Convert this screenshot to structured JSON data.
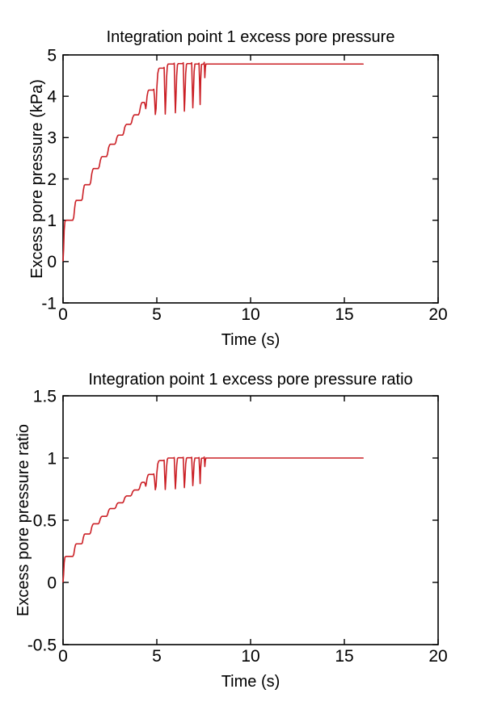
{
  "page": {
    "background": "#ffffff"
  },
  "chart_data": [
    {
      "type": "line",
      "title": "Integration point 1 excess pore pressure",
      "xlabel": "Time (s)",
      "ylabel": "Excess pore pressure (kPa)",
      "xlim": [
        0,
        20
      ],
      "ylim": [
        -1,
        5
      ],
      "xticks": [
        0,
        5,
        10,
        15,
        20
      ],
      "xtick_labels": [
        "0",
        "5",
        "10",
        "15",
        "20"
      ],
      "yticks": [
        -1,
        0,
        1,
        2,
        3,
        4,
        5
      ],
      "ytick_labels": [
        "-1",
        "0",
        "1",
        "2",
        "3",
        "4",
        "5"
      ],
      "grid": false,
      "box": true,
      "legend": null,
      "axis_color": "#000000",
      "line_color": "#cb2026",
      "series": [
        {
          "name": "excess-pore-pressure",
          "points": [
            [
              0,
              0.02
            ],
            [
              0.03,
              0.3
            ],
            [
              0.06,
              0.75
            ],
            [
              0.1,
              0.97
            ],
            [
              0.16,
              1.0
            ],
            [
              0.52,
              1.0
            ],
            [
              0.57,
              1.07
            ],
            [
              0.62,
              1.3
            ],
            [
              0.66,
              1.44
            ],
            [
              0.7,
              1.48
            ],
            [
              0.98,
              1.48
            ],
            [
              1.03,
              1.52
            ],
            [
              1.08,
              1.72
            ],
            [
              1.13,
              1.84
            ],
            [
              1.17,
              1.86
            ],
            [
              1.42,
              1.86
            ],
            [
              1.47,
              1.91
            ],
            [
              1.53,
              2.12
            ],
            [
              1.58,
              2.22
            ],
            [
              1.62,
              2.25
            ],
            [
              1.88,
              2.25
            ],
            [
              1.93,
              2.3
            ],
            [
              1.99,
              2.45
            ],
            [
              2.04,
              2.52
            ],
            [
              2.08,
              2.54
            ],
            [
              2.32,
              2.54
            ],
            [
              2.37,
              2.6
            ],
            [
              2.43,
              2.76
            ],
            [
              2.48,
              2.82
            ],
            [
              2.52,
              2.84
            ],
            [
              2.76,
              2.84
            ],
            [
              2.81,
              2.88
            ],
            [
              2.87,
              3.0
            ],
            [
              2.92,
              3.05
            ],
            [
              2.96,
              3.06
            ],
            [
              3.18,
              3.06
            ],
            [
              3.23,
              3.11
            ],
            [
              3.29,
              3.25
            ],
            [
              3.34,
              3.3
            ],
            [
              3.38,
              3.32
            ],
            [
              3.6,
              3.32
            ],
            [
              3.65,
              3.36
            ],
            [
              3.71,
              3.48
            ],
            [
              3.76,
              3.53
            ],
            [
              3.8,
              3.55
            ],
            [
              4.02,
              3.55
            ],
            [
              4.07,
              3.6
            ],
            [
              4.13,
              3.75
            ],
            [
              4.18,
              3.83
            ],
            [
              4.22,
              3.85
            ],
            [
              4.34,
              3.85
            ],
            [
              4.38,
              3.78
            ],
            [
              4.41,
              3.7
            ],
            [
              4.44,
              3.8
            ],
            [
              4.48,
              4.0
            ],
            [
              4.53,
              4.12
            ],
            [
              4.57,
              4.15
            ],
            [
              4.8,
              4.15
            ],
            [
              4.84,
              4.17
            ],
            [
              4.88,
              3.95
            ],
            [
              4.92,
              3.56
            ],
            [
              4.96,
              3.7
            ],
            [
              5.0,
              4.2
            ],
            [
              5.05,
              4.55
            ],
            [
              5.1,
              4.66
            ],
            [
              5.14,
              4.68
            ],
            [
              5.36,
              4.68
            ],
            [
              5.39,
              4.7
            ],
            [
              5.42,
              4.1
            ],
            [
              5.45,
              3.57
            ],
            [
              5.48,
              3.9
            ],
            [
              5.52,
              4.45
            ],
            [
              5.56,
              4.73
            ],
            [
              5.6,
              4.78
            ],
            [
              5.9,
              4.78
            ],
            [
              5.93,
              4.8
            ],
            [
              5.96,
              4.15
            ],
            [
              5.99,
              3.6
            ],
            [
              6.02,
              3.95
            ],
            [
              6.06,
              4.5
            ],
            [
              6.1,
              4.76
            ],
            [
              6.14,
              4.79
            ],
            [
              6.38,
              4.79
            ],
            [
              6.41,
              4.81
            ],
            [
              6.44,
              4.2
            ],
            [
              6.47,
              3.64
            ],
            [
              6.5,
              3.98
            ],
            [
              6.54,
              4.55
            ],
            [
              6.58,
              4.77
            ],
            [
              6.62,
              4.79
            ],
            [
              6.83,
              4.79
            ],
            [
              6.86,
              4.81
            ],
            [
              6.89,
              4.25
            ],
            [
              6.92,
              3.72
            ],
            [
              6.95,
              4.05
            ],
            [
              6.99,
              4.6
            ],
            [
              7.03,
              4.78
            ],
            [
              7.22,
              4.78
            ],
            [
              7.25,
              4.8
            ],
            [
              7.28,
              4.35
            ],
            [
              7.31,
              3.8
            ],
            [
              7.34,
              4.4
            ],
            [
              7.38,
              4.77
            ],
            [
              7.5,
              4.78
            ],
            [
              7.53,
              4.82
            ],
            [
              7.56,
              4.45
            ],
            [
              7.59,
              4.7
            ],
            [
              7.62,
              4.78
            ],
            [
              16,
              4.78
            ]
          ]
        }
      ]
    },
    {
      "type": "line",
      "title": "Integration point 1 excess pore pressure ratio",
      "xlabel": "Time (s)",
      "ylabel": "Excess pore pressure ratio",
      "xlim": [
        0,
        20
      ],
      "ylim": [
        -0.5,
        1.5
      ],
      "xticks": [
        0,
        5,
        10,
        15,
        20
      ],
      "xtick_labels": [
        "0",
        "5",
        "10",
        "15",
        "20"
      ],
      "yticks": [
        -0.5,
        0,
        0.5,
        1,
        1.5
      ],
      "ytick_labels": [
        "-0.5",
        "0",
        "0.5",
        "1",
        "1.5"
      ],
      "grid": false,
      "box": true,
      "legend": null,
      "axis_color": "#000000",
      "line_color": "#cb2026",
      "series": [
        {
          "name": "excess-pore-pressure-ratio",
          "points": [
            [
              0,
              0.004
            ],
            [
              0.03,
              0.063
            ],
            [
              0.06,
              0.157
            ],
            [
              0.1,
              0.203
            ],
            [
              0.16,
              0.209
            ],
            [
              0.52,
              0.209
            ],
            [
              0.57,
              0.224
            ],
            [
              0.62,
              0.272
            ],
            [
              0.66,
              0.301
            ],
            [
              0.7,
              0.31
            ],
            [
              0.98,
              0.31
            ],
            [
              1.03,
              0.318
            ],
            [
              1.08,
              0.36
            ],
            [
              1.13,
              0.385
            ],
            [
              1.17,
              0.389
            ],
            [
              1.42,
              0.389
            ],
            [
              1.47,
              0.4
            ],
            [
              1.53,
              0.444
            ],
            [
              1.58,
              0.464
            ],
            [
              1.62,
              0.471
            ],
            [
              1.88,
              0.471
            ],
            [
              1.93,
              0.481
            ],
            [
              1.99,
              0.513
            ],
            [
              2.04,
              0.527
            ],
            [
              2.08,
              0.531
            ],
            [
              2.32,
              0.531
            ],
            [
              2.37,
              0.544
            ],
            [
              2.43,
              0.577
            ],
            [
              2.48,
              0.59
            ],
            [
              2.52,
              0.594
            ],
            [
              2.76,
              0.594
            ],
            [
              2.81,
              0.603
            ],
            [
              2.87,
              0.628
            ],
            [
              2.92,
              0.638
            ],
            [
              2.96,
              0.64
            ],
            [
              3.18,
              0.64
            ],
            [
              3.23,
              0.651
            ],
            [
              3.29,
              0.68
            ],
            [
              3.34,
              0.69
            ],
            [
              3.38,
              0.695
            ],
            [
              3.6,
              0.695
            ],
            [
              3.65,
              0.703
            ],
            [
              3.71,
              0.728
            ],
            [
              3.76,
              0.738
            ],
            [
              3.8,
              0.743
            ],
            [
              4.02,
              0.743
            ],
            [
              4.07,
              0.753
            ],
            [
              4.13,
              0.785
            ],
            [
              4.18,
              0.801
            ],
            [
              4.22,
              0.805
            ],
            [
              4.34,
              0.805
            ],
            [
              4.38,
              0.791
            ],
            [
              4.41,
              0.774
            ],
            [
              4.44,
              0.795
            ],
            [
              4.48,
              0.837
            ],
            [
              4.53,
              0.862
            ],
            [
              4.57,
              0.868
            ],
            [
              4.8,
              0.868
            ],
            [
              4.84,
              0.872
            ],
            [
              4.88,
              0.826
            ],
            [
              4.92,
              0.745
            ],
            [
              4.96,
              0.774
            ],
            [
              5.0,
              0.879
            ],
            [
              5.05,
              0.952
            ],
            [
              5.1,
              0.975
            ],
            [
              5.14,
              0.979
            ],
            [
              5.36,
              0.979
            ],
            [
              5.39,
              0.983
            ],
            [
              5.42,
              0.858
            ],
            [
              5.45,
              0.747
            ],
            [
              5.48,
              0.816
            ],
            [
              5.52,
              0.931
            ],
            [
              5.56,
              0.99
            ],
            [
              5.6,
              1.0
            ],
            [
              5.9,
              1.0
            ],
            [
              5.93,
              1.004
            ],
            [
              5.96,
              0.868
            ],
            [
              5.99,
              0.753
            ],
            [
              6.02,
              0.826
            ],
            [
              6.06,
              0.941
            ],
            [
              6.1,
              0.996
            ],
            [
              6.14,
              1.002
            ],
            [
              6.38,
              1.002
            ],
            [
              6.41,
              1.006
            ],
            [
              6.44,
              0.879
            ],
            [
              6.47,
              0.762
            ],
            [
              6.5,
              0.833
            ],
            [
              6.54,
              0.952
            ],
            [
              6.58,
              0.998
            ],
            [
              6.62,
              1.002
            ],
            [
              6.83,
              1.002
            ],
            [
              6.86,
              1.006
            ],
            [
              6.89,
              0.889
            ],
            [
              6.92,
              0.778
            ],
            [
              6.95,
              0.847
            ],
            [
              6.99,
              0.962
            ],
            [
              7.03,
              1.0
            ],
            [
              7.22,
              1.0
            ],
            [
              7.25,
              1.004
            ],
            [
              7.28,
              0.91
            ],
            [
              7.31,
              0.795
            ],
            [
              7.34,
              0.92
            ],
            [
              7.38,
              0.998
            ],
            [
              7.5,
              1.0
            ],
            [
              7.53,
              1.008
            ],
            [
              7.56,
              0.931
            ],
            [
              7.59,
              0.983
            ],
            [
              7.62,
              1.0
            ],
            [
              16,
              1.0
            ]
          ]
        }
      ]
    }
  ]
}
